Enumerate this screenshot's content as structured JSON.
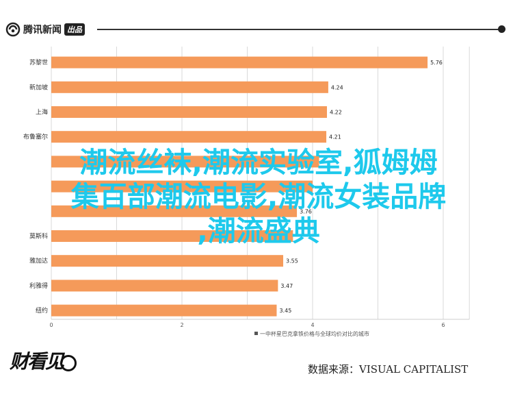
{
  "header": {
    "logo_text": "腾讯新闻",
    "logo_badge": "出品"
  },
  "overlay_lines": [
    "潮流丝袜,潮流实验室,狐姆姆",
    "集百部潮流电影,潮流女装品牌",
    ",潮流盛典"
  ],
  "footer": {
    "brand": "财看见",
    "source": "数据来源：VISUAL CAPITALIST"
  },
  "colors": {
    "bar": "#f59a5a",
    "overlay_text": "#1ec9ec"
  },
  "chart_data": {
    "type": "bar",
    "orientation": "horizontal",
    "categories": [
      "苏黎世",
      "新加坡",
      "上海",
      "布鲁塞尔",
      "",
      "",
      "",
      "莫斯科",
      "雅加达",
      "利雅得",
      "纽约"
    ],
    "values": [
      5.76,
      4.24,
      4.22,
      4.21,
      4.1,
      4.0,
      3.76,
      3.7,
      3.55,
      3.47,
      3.45
    ],
    "data_labels": [
      "5.76",
      "4.24",
      "4.22",
      "4.21",
      "",
      "",
      "3.76",
      "",
      "3.55",
      "3.47",
      "3.45"
    ],
    "xlim": [
      0,
      6.4
    ],
    "xticks": [
      "0",
      "2",
      "4",
      "6"
    ],
    "xlabel": "一中杯星巴克拿铁价格与全球均价对比的城市",
    "grid": true
  }
}
